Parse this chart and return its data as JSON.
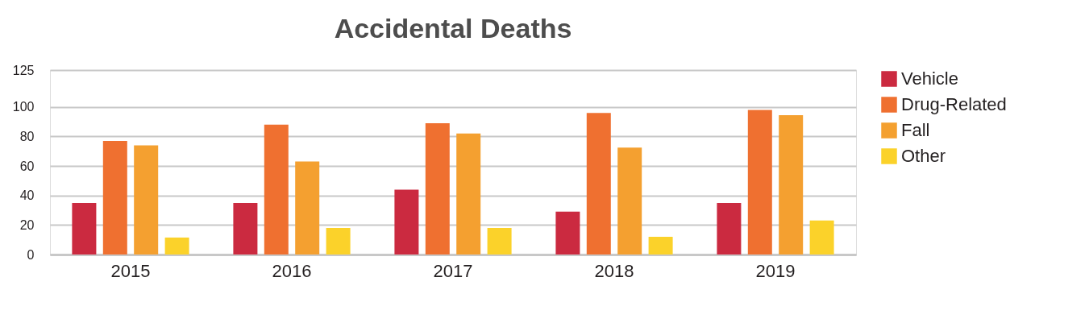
{
  "chart_data": {
    "type": "bar",
    "title": "Accidental Deaths",
    "categories": [
      "2015",
      "2016",
      "2017",
      "2018",
      "2019"
    ],
    "series": [
      {
        "name": "Vehicle",
        "color": "#cb2a40",
        "values": [
          35,
          35,
          44,
          29,
          35
        ]
      },
      {
        "name": "Drug-Related",
        "color": "#ef7030",
        "values": [
          77,
          88,
          89,
          96,
          98
        ]
      },
      {
        "name": "Fall",
        "color": "#f4a030",
        "values": [
          74,
          63,
          82,
          72.5,
          94.5
        ]
      },
      {
        "name": "Other",
        "color": "#fbd22a",
        "values": [
          11.5,
          18,
          18,
          12,
          23
        ]
      }
    ],
    "ylim": [
      0,
      125
    ],
    "yticks": [
      0,
      20,
      40,
      60,
      80,
      100,
      125
    ],
    "grid": "y",
    "legend": "right"
  }
}
